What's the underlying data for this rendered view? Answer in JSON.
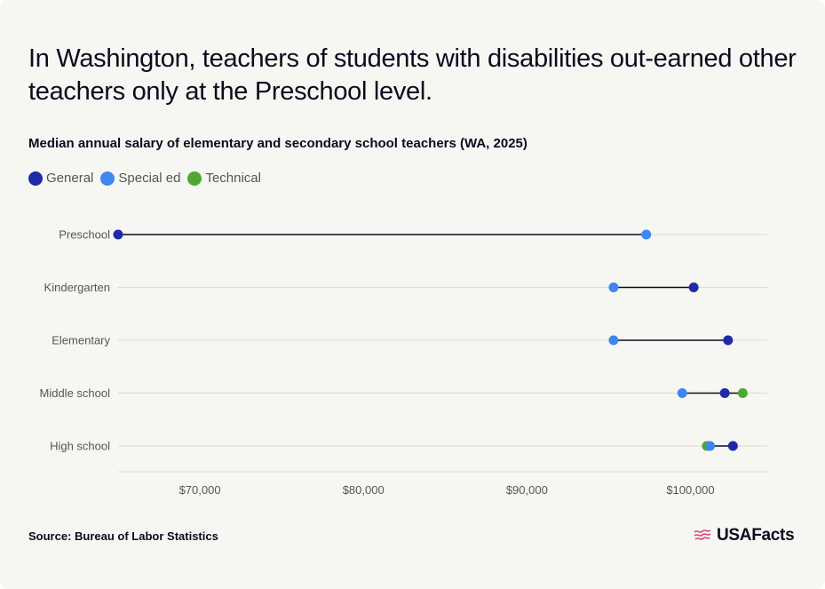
{
  "header": {
    "title": "In Washington, teachers of students with disabilities out-earned other teachers only at the Preschool level.",
    "subtitle": "Median annual salary of elementary and secondary school teachers (WA, 2025)"
  },
  "legend": [
    {
      "label": "General",
      "color": "#1f2aa6"
    },
    {
      "label": "Special ed",
      "color": "#3f87f0"
    },
    {
      "label": "Technical",
      "color": "#4ea832"
    }
  ],
  "footer": {
    "source": "Source: Bureau of Labor Statistics",
    "logo_text": "USAFacts",
    "logo_icon": "usa-flag-icon",
    "logo_color": "#e0457b"
  },
  "chart_data": {
    "type": "dot",
    "categories": [
      "Preschool",
      "Kindergarten",
      "Elementary",
      "Middle school",
      "High school"
    ],
    "series": [
      {
        "name": "General",
        "color": "#1f2aa6",
        "values": [
          65000,
          100200,
          102300,
          102100,
          102600
        ]
      },
      {
        "name": "Special ed",
        "color": "#3f87f0",
        "values": [
          97300,
          95300,
          95300,
          99500,
          101200
        ]
      },
      {
        "name": "Technical",
        "color": "#4ea832",
        "values": [
          null,
          null,
          null,
          103200,
          101000
        ]
      }
    ],
    "xticks": [
      70000,
      80000,
      90000,
      100000
    ],
    "xtick_labels": [
      "$70,000",
      "$80,000",
      "$90,000",
      "$100,000"
    ],
    "xlim": [
      65000,
      104700
    ],
    "grid": true,
    "legend_position": "top-left"
  }
}
